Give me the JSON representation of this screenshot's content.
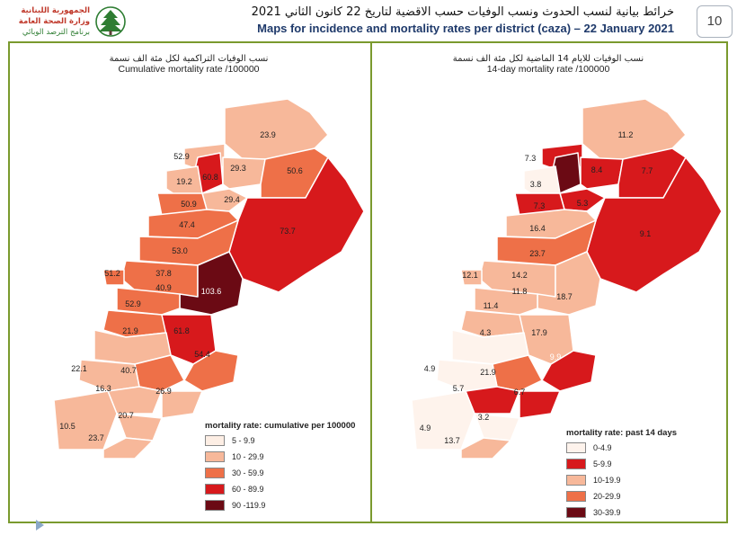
{
  "header": {
    "logo_line1": "الجمهورية اللبنانية",
    "logo_line2": "وزارة الصحة العامة",
    "logo_line3": "برنامج الترصد الوبائي",
    "title_ar": "خرائط بيانية لنسب الحدوث ونسب الوفيات حسب الاقضية لتاريخ 22 كانون الثاني 2021",
    "title_en": "Maps for incidence and mortality rates per district (caza) – 22 January 2021",
    "page_number": "10"
  },
  "left_panel": {
    "title_ar": "نسب الوفيات التراكمية لكل مئة الف نسمة",
    "title_en": "Cumulative mortality rate /100000",
    "labels": [
      "23.9",
      "52.9",
      "60.8",
      "29.3",
      "19.2",
      "50.6",
      "50.9",
      "29.4",
      "47.4",
      "73.7",
      "53.0",
      "51.2",
      "37.8",
      "40.9",
      "103.6",
      "52.9",
      "21.9",
      "61.8",
      "40.7",
      "54.4",
      "22.1",
      "16.3",
      "26.9",
      "20.7",
      "10.5",
      "23.7"
    ],
    "legend": {
      "title": "mortality rate: cumulative per 100000",
      "items": [
        {
          "label": "5 - 9.9",
          "color": "#fdeee4"
        },
        {
          "label": "10 - 29.9",
          "color": "#f7b89a"
        },
        {
          "label": "30 - 59.9",
          "color": "#ee7048"
        },
        {
          "label": "60 - 89.9",
          "color": "#d7191c"
        },
        {
          "label": "90 -119.9",
          "color": "#6b0a14"
        }
      ]
    }
  },
  "right_panel": {
    "title_ar": "نسب الوفيات للايام 14 الماضية لكل مئة الف نسمة",
    "title_en": "14-day mortality rate /100000",
    "labels": [
      "11.2",
      "7.3",
      "3.8",
      "8.4",
      "7.7",
      "7.3",
      "5.3",
      "16.4",
      "9.1",
      "23.7",
      "12.1",
      "14.2",
      "11.8",
      "18.7",
      "11.4",
      "4.3",
      "17.9",
      "9.9",
      "4.9",
      "21.9",
      "5.7",
      "6.7",
      "3.2",
      "4.9",
      "13.7"
    ],
    "legend": {
      "title": "mortality rate: past 14 days",
      "items": [
        {
          "label": "0-4.9",
          "color": "#fef3ec"
        },
        {
          "label": "5-9.9",
          "color": "#d7191c"
        },
        {
          "label": "10-19.9",
          "color": "#f7b89a"
        },
        {
          "label": "20-29.9",
          "color": "#ee7048"
        },
        {
          "label": "30-39.9",
          "color": "#6b0a14"
        }
      ]
    }
  }
}
